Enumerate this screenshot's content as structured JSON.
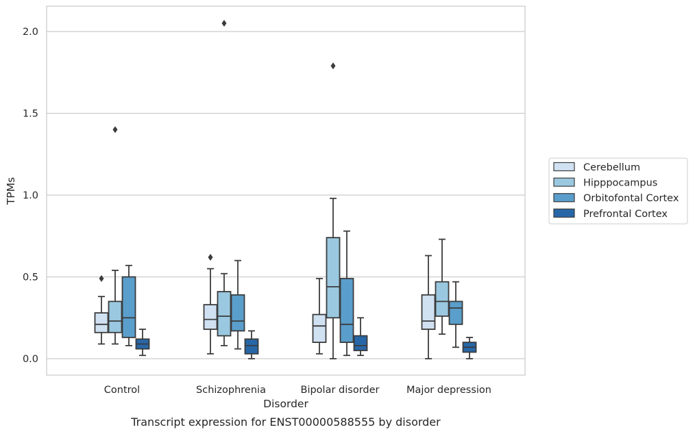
{
  "chart_data": {
    "type": "box",
    "caption": "Transcript expression for ENST00000588555 by disorder",
    "xlabel": "Disorder",
    "ylabel": "TPMs",
    "ylim": [
      -0.1,
      2.16
    ],
    "yticks": [
      "0.0",
      "0.5",
      "1.0",
      "1.5",
      "2.0"
    ],
    "grid": "horizontal",
    "legend_position": "right",
    "categories": [
      "Control",
      "Schizophrenia",
      "Bipolar disorder",
      "Major depression"
    ],
    "series": [
      {
        "name": "Cerebellum",
        "color": "#d0e1f2",
        "boxes": [
          {
            "whislo": 0.09,
            "q1": 0.16,
            "med": 0.21,
            "q3": 0.28,
            "whishi": 0.38,
            "fliers": [
              0.49
            ]
          },
          {
            "whislo": 0.03,
            "q1": 0.18,
            "med": 0.24,
            "q3": 0.33,
            "whishi": 0.55,
            "fliers": [
              0.62
            ]
          },
          {
            "whislo": 0.03,
            "q1": 0.1,
            "med": 0.2,
            "q3": 0.27,
            "whishi": 0.49,
            "fliers": []
          },
          {
            "whislo": 0.0,
            "q1": 0.18,
            "med": 0.23,
            "q3": 0.39,
            "whishi": 0.63,
            "fliers": []
          }
        ]
      },
      {
        "name": "Hipppocampus",
        "color": "#9ac8e0",
        "boxes": [
          {
            "whislo": 0.09,
            "q1": 0.16,
            "med": 0.23,
            "q3": 0.35,
            "whishi": 0.54,
            "fliers": [
              1.4
            ]
          },
          {
            "whislo": 0.08,
            "q1": 0.14,
            "med": 0.26,
            "q3": 0.41,
            "whishi": 0.52,
            "fliers": [
              2.05
            ]
          },
          {
            "whislo": 0.0,
            "q1": 0.25,
            "med": 0.44,
            "q3": 0.74,
            "whishi": 0.98,
            "fliers": [
              1.79
            ]
          },
          {
            "whislo": 0.15,
            "q1": 0.26,
            "med": 0.35,
            "q3": 0.47,
            "whishi": 0.73,
            "fliers": []
          }
        ]
      },
      {
        "name": "Orbitofontal Cortex",
        "color": "#5a9ecb",
        "boxes": [
          {
            "whislo": 0.08,
            "q1": 0.13,
            "med": 0.25,
            "q3": 0.5,
            "whishi": 0.57,
            "fliers": []
          },
          {
            "whislo": 0.06,
            "q1": 0.17,
            "med": 0.23,
            "q3": 0.39,
            "whishi": 0.6,
            "fliers": []
          },
          {
            "whislo": 0.02,
            "q1": 0.1,
            "med": 0.21,
            "q3": 0.49,
            "whishi": 0.78,
            "fliers": []
          },
          {
            "whislo": 0.07,
            "q1": 0.21,
            "med": 0.31,
            "q3": 0.35,
            "whishi": 0.47,
            "fliers": []
          }
        ]
      },
      {
        "name": "Prefrontal Cortex",
        "color": "#2767a8",
        "boxes": [
          {
            "whislo": 0.02,
            "q1": 0.06,
            "med": 0.09,
            "q3": 0.12,
            "whishi": 0.18,
            "fliers": []
          },
          {
            "whislo": 0.0,
            "q1": 0.03,
            "med": 0.08,
            "q3": 0.12,
            "whishi": 0.17,
            "fliers": []
          },
          {
            "whislo": 0.02,
            "q1": 0.05,
            "med": 0.08,
            "q3": 0.14,
            "whishi": 0.25,
            "fliers": []
          },
          {
            "whislo": 0.0,
            "q1": 0.04,
            "med": 0.07,
            "q3": 0.1,
            "whishi": 0.13,
            "fliers": []
          }
        ]
      }
    ]
  }
}
